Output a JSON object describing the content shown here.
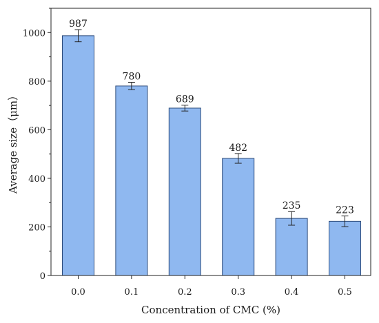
{
  "chart_data": {
    "type": "bar",
    "title": "",
    "xlabel": "Concentration of CMC (%)",
    "ylabel": "Average size（μm）",
    "categories": [
      "0.0",
      "0.1",
      "0.2",
      "0.3",
      "0.4",
      "0.5"
    ],
    "values": [
      987,
      780,
      689,
      482,
      235,
      223
    ],
    "errors": [
      25,
      15,
      12,
      20,
      28,
      22
    ],
    "data_labels": [
      "987",
      "780",
      "689",
      "482",
      "235",
      "223"
    ],
    "ylim": [
      0,
      1100
    ],
    "yticks": [
      0,
      200,
      400,
      600,
      800,
      1000
    ],
    "grid": false,
    "legend": "none",
    "bar_color": "#8fb8f0",
    "bar_edge_color": "#2b4a7a"
  }
}
